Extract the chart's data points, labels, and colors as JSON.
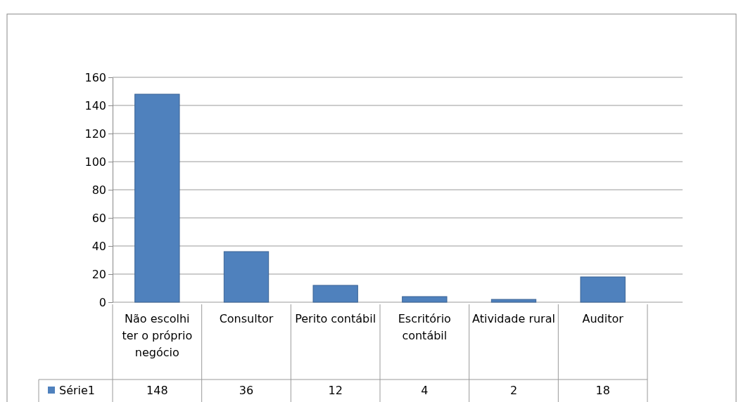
{
  "chart_data": {
    "type": "bar",
    "categories": [
      "Não escolhi ter o próprio negócio",
      "Consultor",
      "Perito contábil",
      "Escritório contábil",
      "Atividade rural",
      "Auditor"
    ],
    "series": [
      {
        "name": "Série1",
        "color": "#4f81bd",
        "values": [
          148,
          36,
          12,
          4,
          2,
          18
        ]
      }
    ],
    "ylim": [
      0,
      160
    ],
    "yticks": [
      0,
      20,
      40,
      60,
      80,
      100,
      120,
      140,
      160
    ],
    "grid": "y",
    "data_labels": true,
    "legend": "bottom"
  }
}
